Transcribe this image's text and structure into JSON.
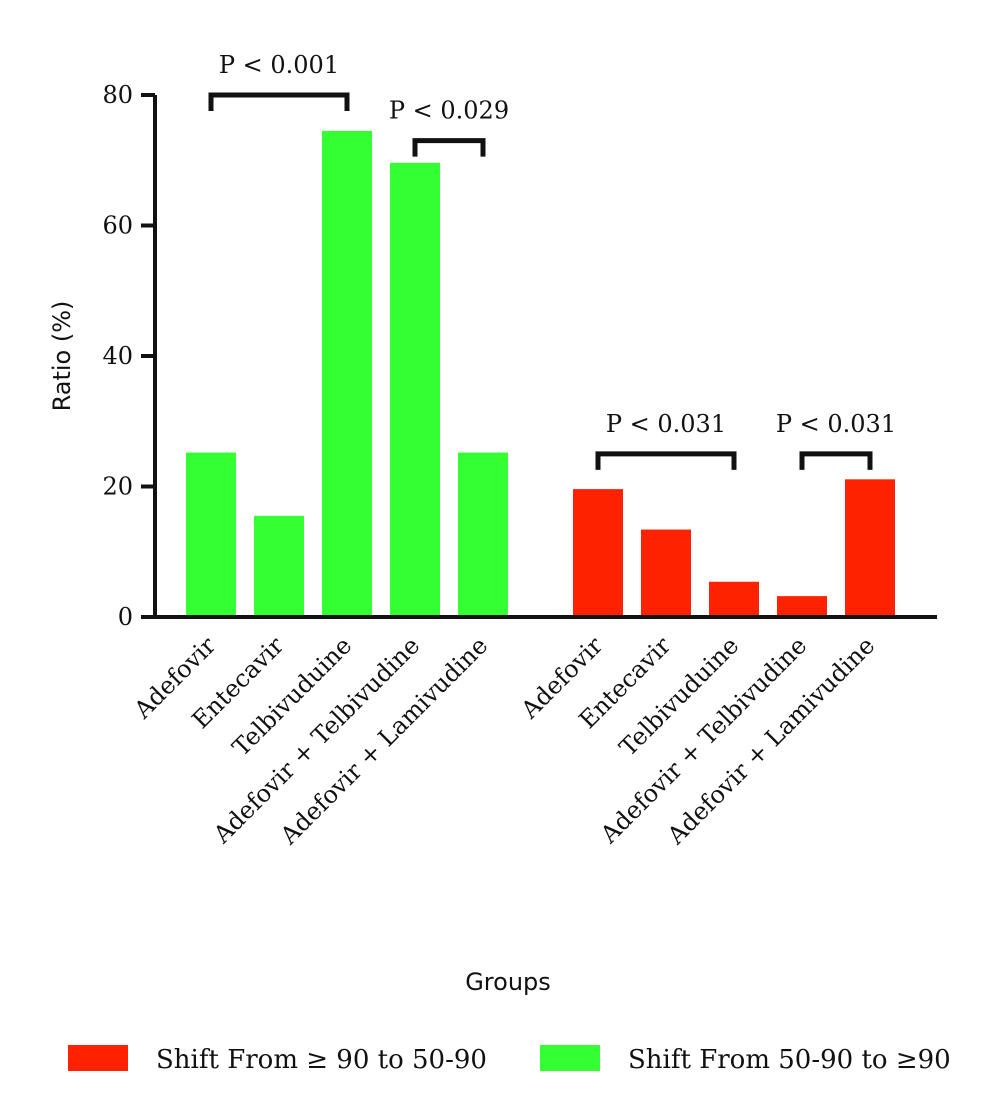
{
  "chart_data": {
    "type": "bar",
    "xlabel": "Groups",
    "ylabel": "Ratio (%)",
    "ylim": [
      0,
      80
    ],
    "yticks": [
      "0",
      "20",
      "40",
      "60",
      "80"
    ],
    "grid": false,
    "legend_position": "bottom",
    "series": [
      {
        "name": "Shift From 50-90 to ≥90",
        "color": "#33ff33",
        "categories": [
          "Adefovir",
          "Entecavir",
          "Telbivuduine",
          "Adefovir + Telbivudine",
          "Adefovir + Lamivudine"
        ],
        "values": [
          25.2,
          15.5,
          74.5,
          69.6,
          25.2
        ]
      },
      {
        "name": "Shift From ≥ 90 to 50-90",
        "color": "#ff2200",
        "categories": [
          "Adefovir",
          "Entecavir",
          "Telbivuduine",
          "Adefovir + Telbivudine",
          "Adefovir + Lamivudine"
        ],
        "values": [
          19.6,
          13.4,
          5.4,
          3.2,
          21.1
        ]
      }
    ],
    "annotations": [
      {
        "text": "P < 0.001",
        "group": 0,
        "from": 0,
        "to": 2,
        "level": 80
      },
      {
        "text": "P < 0.029",
        "group": 0,
        "from": 3,
        "to": 4,
        "level": 73
      },
      {
        "text": "P < 0.031",
        "group": 1,
        "from": 0,
        "to": 2,
        "level": 25
      },
      {
        "text": "P < 0.031",
        "group": 1,
        "from": 3,
        "to": 4,
        "level": 25
      }
    ],
    "legend": [
      {
        "label": "Shift From ≥ 90 to 50-90",
        "color": "#ff2200"
      },
      {
        "label": "Shift From 50-90 to ≥90",
        "color": "#33ff33"
      }
    ]
  }
}
